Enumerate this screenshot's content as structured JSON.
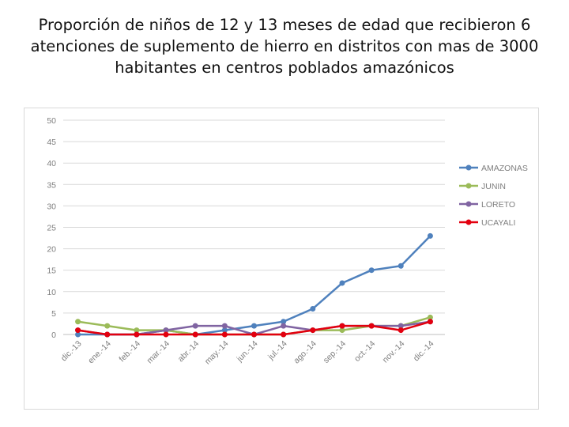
{
  "chart_data": {
    "type": "line",
    "title_lines": [
      "Proporción de niños de 12 y 13 meses de edad que recibieron 6",
      "atenciones de suplemento de hierro en distritos con mas de 3000",
      "habitantes en centros poblados amazónicos"
    ],
    "categories": [
      "dic.-13",
      "ene.-14",
      "feb.-14",
      "mar.-14",
      "abr.-14",
      "may.-14",
      "jun.-14",
      "jul.-14",
      "ago.-14",
      "sep.-14",
      "oct.-14",
      "nov.-14",
      "dic.-14"
    ],
    "y_ticks": [
      0,
      5,
      10,
      15,
      20,
      25,
      30,
      35,
      40,
      45,
      50
    ],
    "ylim": [
      0,
      50
    ],
    "legend_position": "right",
    "series": [
      {
        "name": "AMAZONAS",
        "color": "#4f81bd",
        "values": [
          0,
          0,
          0,
          1,
          0,
          1,
          2,
          3,
          6,
          12,
          15,
          16,
          23
        ]
      },
      {
        "name": "JUNIN",
        "color": "#9bbb59",
        "values": [
          3,
          2,
          1,
          1,
          0,
          0,
          0,
          0,
          1,
          1,
          2,
          2,
          4
        ]
      },
      {
        "name": "LORETO",
        "color": "#8064a2",
        "values": [
          1,
          0,
          0,
          1,
          2,
          2,
          0,
          2,
          1,
          2,
          2,
          2,
          3
        ]
      },
      {
        "name": "UCAYALI",
        "color": "#e3000f",
        "values": [
          1,
          0,
          0,
          0,
          0,
          0,
          0,
          0,
          1,
          2,
          2,
          1,
          3
        ]
      }
    ]
  }
}
